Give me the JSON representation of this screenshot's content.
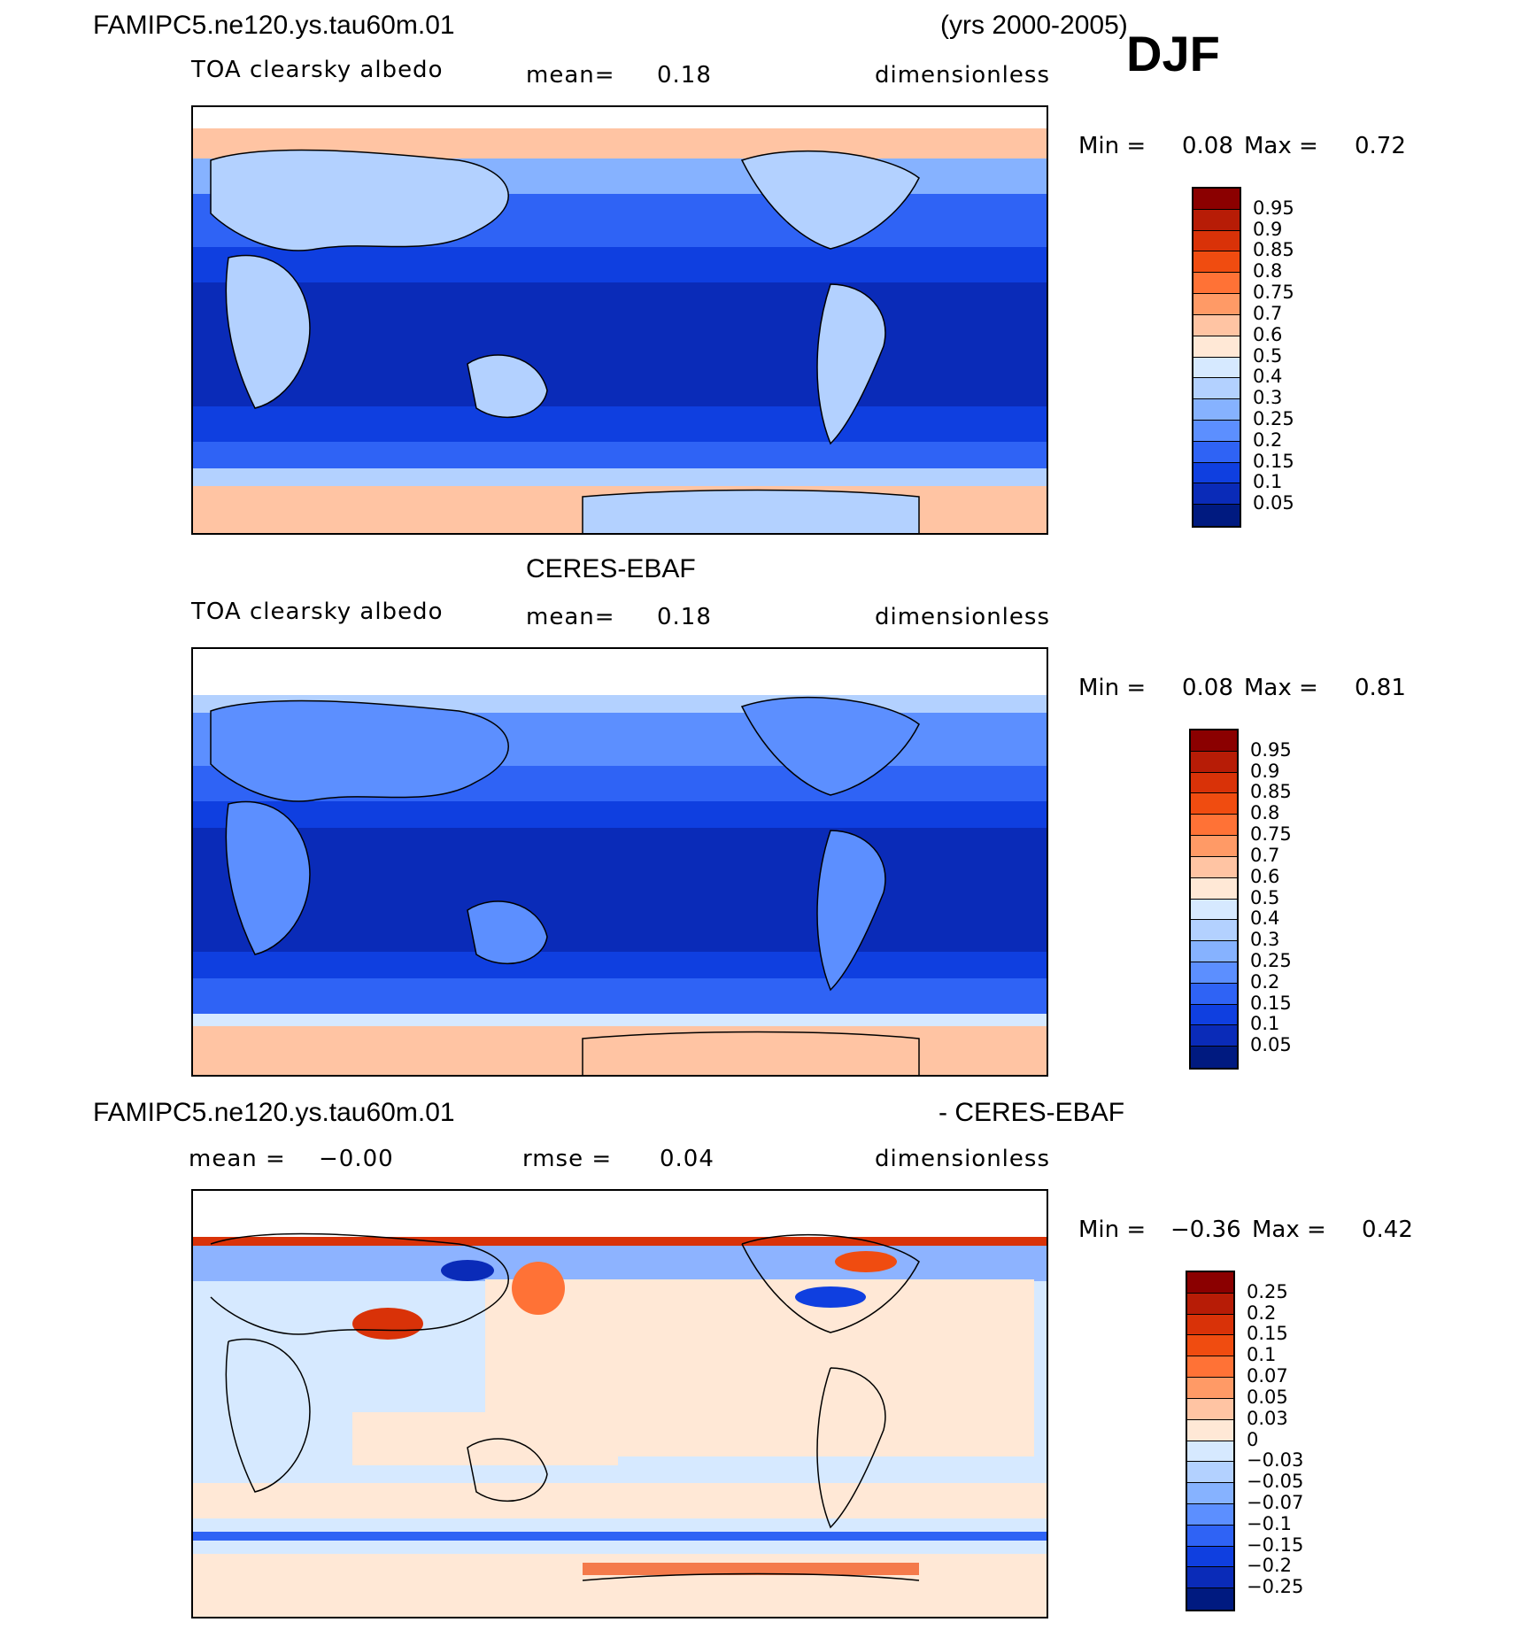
{
  "header": {
    "case_name": "FAMIPC5.ne120.ys.tau60m.01",
    "years": "(yrs 2000-2005)",
    "season": "DJF"
  },
  "panels": [
    {
      "id": "model",
      "title": "",
      "field": "TOA clearsky albedo",
      "mean_label": "mean=",
      "mean_value": "0.18",
      "units": "dimensionless",
      "min_label": "Min =",
      "min_value": "0.08",
      "max_label": "Max =",
      "max_value": "0.72",
      "colorbar": {
        "labels": [
          "0.95",
          "0.9",
          "0.85",
          "0.8",
          "0.75",
          "0.7",
          "0.6",
          "0.5",
          "0.4",
          "0.3",
          "0.25",
          "0.2",
          "0.15",
          "0.1",
          "0.05"
        ],
        "colors": [
          "#8b0000",
          "#b71c06",
          "#d93208",
          "#f04c10",
          "#ff7236",
          "#ff9a66",
          "#ffc4a3",
          "#ffe8d6",
          "#d6e9ff",
          "#b3d1ff",
          "#86b2ff",
          "#5c8fff",
          "#2f63f5",
          "#0f3fe0",
          "#0a2bb8",
          "#001a80"
        ]
      }
    },
    {
      "id": "obs",
      "title": "CERES-EBAF",
      "field": "TOA clearsky albedo",
      "mean_label": "mean=",
      "mean_value": "0.18",
      "units": "dimensionless",
      "min_label": "Min =",
      "min_value": "0.08",
      "max_label": "Max =",
      "max_value": "0.81",
      "colorbar": {
        "labels": [
          "0.95",
          "0.9",
          "0.85",
          "0.8",
          "0.75",
          "0.7",
          "0.6",
          "0.5",
          "0.4",
          "0.3",
          "0.25",
          "0.2",
          "0.15",
          "0.1",
          "0.05"
        ],
        "colors": [
          "#8b0000",
          "#b71c06",
          "#d93208",
          "#f04c10",
          "#ff7236",
          "#ff9a66",
          "#ffc4a3",
          "#ffe8d6",
          "#d6e9ff",
          "#b3d1ff",
          "#86b2ff",
          "#5c8fff",
          "#2f63f5",
          "#0f3fe0",
          "#0a2bb8",
          "#001a80"
        ]
      }
    },
    {
      "id": "diff",
      "title_left": "FAMIPC5.ne120.ys.tau60m.01",
      "title_right": "- CERES-EBAF",
      "mean_label": "mean =",
      "mean_value": "−0.00",
      "rmse_label": "rmse =",
      "rmse_value": "0.04",
      "units": "dimensionless",
      "min_label": "Min =",
      "min_value": "−0.36",
      "max_label": "Max =",
      "max_value": "0.42",
      "colorbar": {
        "labels": [
          "0.25",
          "0.2",
          "0.15",
          "0.1",
          "0.07",
          "0.05",
          "0.03",
          "0",
          "−0.03",
          "−0.05",
          "−0.07",
          "−0.1",
          "−0.15",
          "−0.2",
          "−0.25"
        ],
        "colors": [
          "#8b0000",
          "#b71c06",
          "#d93208",
          "#f04c10",
          "#ff7236",
          "#ff9a66",
          "#ffc4a3",
          "#ffe8d6",
          "#d6e9ff",
          "#b3d1ff",
          "#86b2ff",
          "#5c8fff",
          "#2f63f5",
          "#0f3fe0",
          "#0a2bb8",
          "#001a80"
        ]
      }
    }
  ]
}
